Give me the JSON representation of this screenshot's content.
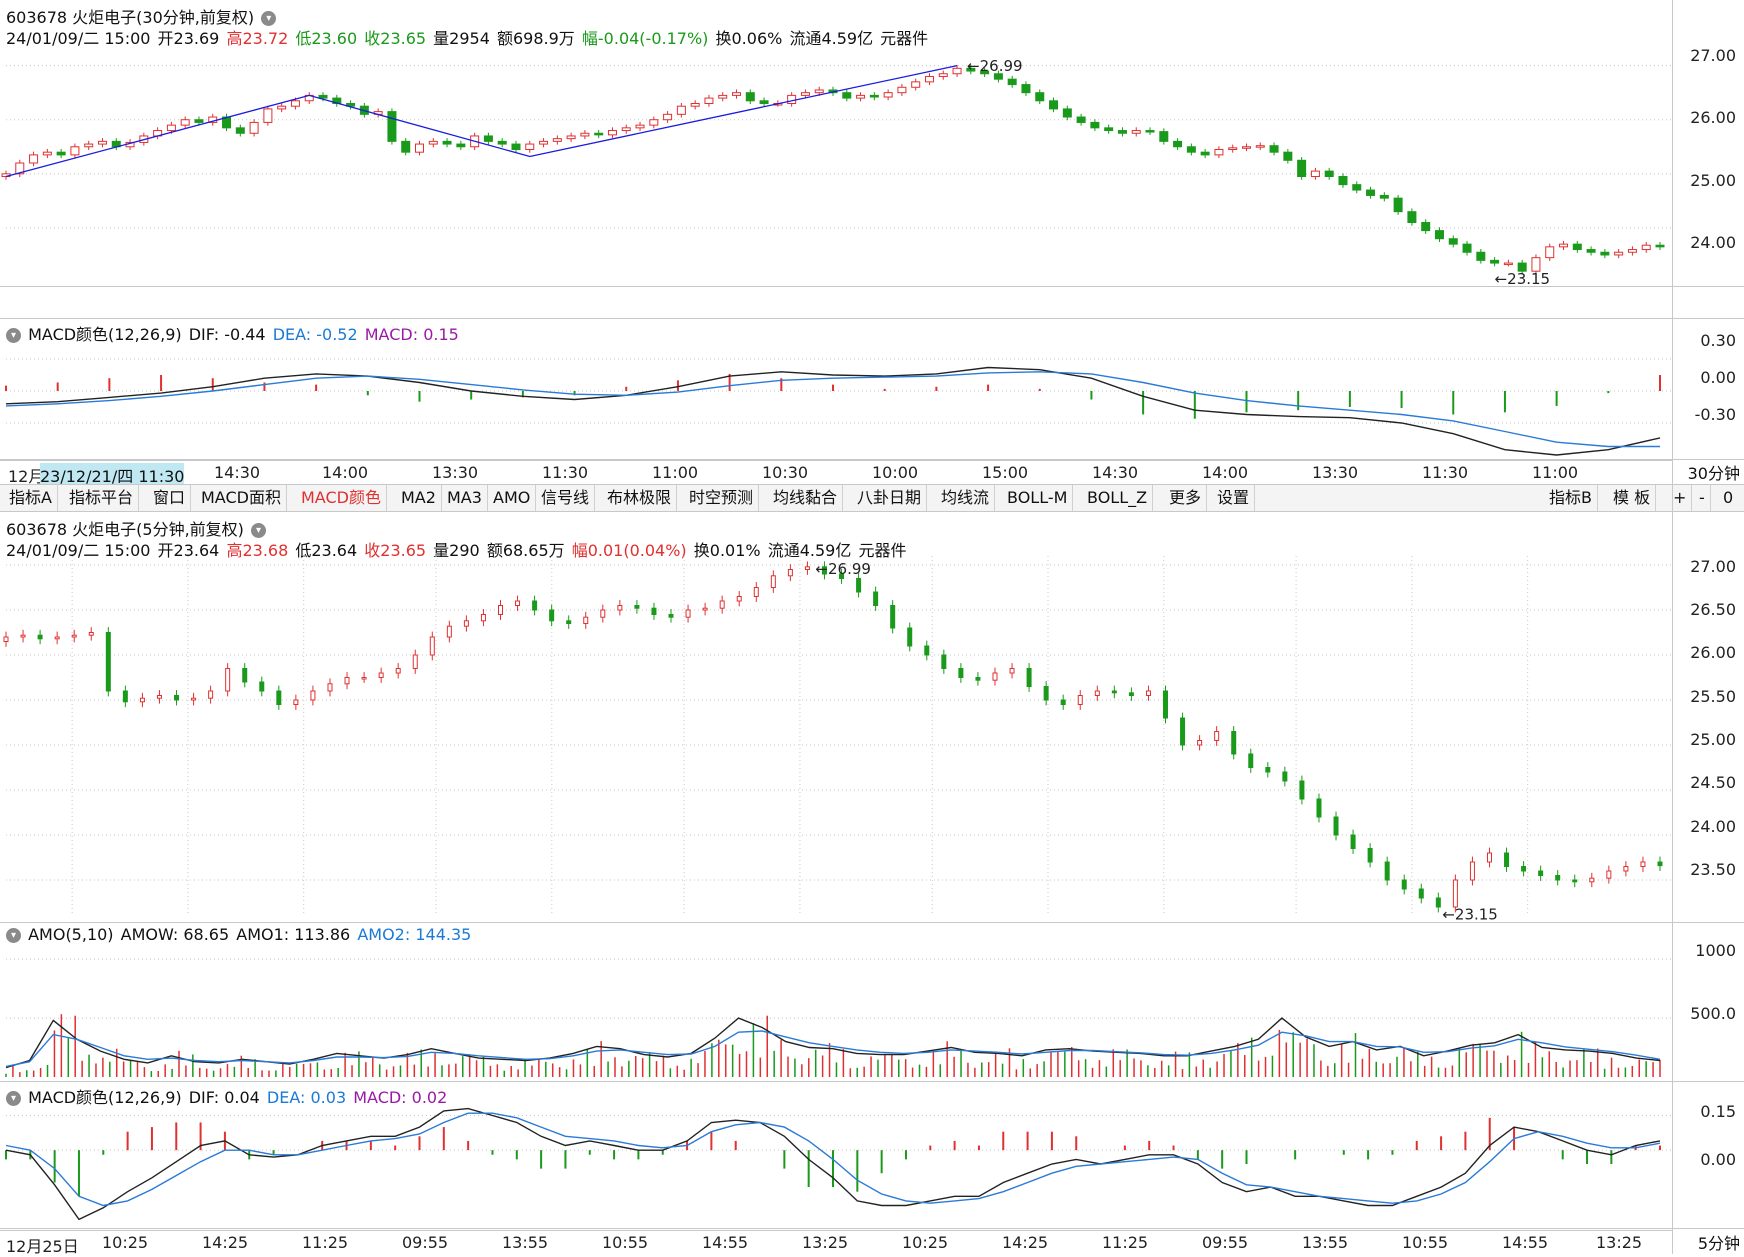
{
  "colors": {
    "up": "#e03030",
    "down": "#1a9a1a",
    "dif": "#222222",
    "dea": "#2a7ad8",
    "grid": "#c8c8c8",
    "trend": "#1a1ae0",
    "amo2": "#2a7ad8"
  },
  "top": {
    "title": "603678 火炬电子(30分钟,前复权)",
    "quote": {
      "date": "24/01/09/二 15:00",
      "open": "开23.69",
      "high": "高23.72",
      "low": "低23.60",
      "close": "收23.65",
      "vol": "量2954",
      "amount": "额698.9万",
      "change": "幅-0.04(-0.17%)",
      "turnover": "换0.06%",
      "float": "流通4.59亿",
      "sector": "元器件"
    },
    "yticks": [
      "27.00",
      "26.00",
      "25.00",
      "24.00"
    ],
    "yrange": [
      23.0,
      27.4
    ],
    "high_mark": "26.99",
    "low_mark": "23.15",
    "close_series": [
      25.0,
      25.2,
      25.35,
      25.4,
      25.35,
      25.5,
      25.55,
      25.6,
      25.5,
      25.58,
      25.7,
      25.8,
      25.9,
      26.0,
      25.95,
      26.05,
      25.85,
      25.75,
      25.95,
      26.2,
      26.25,
      26.35,
      26.45,
      26.4,
      26.3,
      26.25,
      26.1,
      26.15,
      25.6,
      25.4,
      25.55,
      25.6,
      25.55,
      25.5,
      25.7,
      25.6,
      25.55,
      25.45,
      25.55,
      25.6,
      25.65,
      25.7,
      25.75,
      25.72,
      25.8,
      25.85,
      25.9,
      26.0,
      26.1,
      26.25,
      26.3,
      26.4,
      26.45,
      26.5,
      26.35,
      26.3,
      26.3,
      26.45,
      26.5,
      26.55,
      26.5,
      26.4,
      26.45,
      26.42,
      26.5,
      26.6,
      26.7,
      26.8,
      26.85,
      26.95,
      26.9,
      26.85,
      26.75,
      26.65,
      26.5,
      26.35,
      26.2,
      26.05,
      25.95,
      25.85,
      25.8,
      25.75,
      25.8,
      25.78,
      25.6,
      25.5,
      25.4,
      25.35,
      25.45,
      25.48,
      25.5,
      25.52,
      25.4,
      25.25,
      24.95,
      25.05,
      24.95,
      24.8,
      24.7,
      24.6,
      24.55,
      24.3,
      24.1,
      23.95,
      23.8,
      23.7,
      23.55,
      23.4,
      23.35,
      23.35,
      23.2,
      23.45,
      23.65,
      23.7,
      23.6,
      23.55,
      23.5,
      23.55,
      23.6,
      23.68,
      23.65
    ]
  },
  "top_macd": {
    "title": "MACD颜色(12,26,9)",
    "dif": "DIF: -0.44",
    "dea": "DEA: -0.52",
    "macd": "MACD: 0.15",
    "yticks": [
      "0.30",
      "0.00",
      "-0.30"
    ],
    "yrange": [
      -0.6,
      0.45
    ],
    "dif_series": [
      -0.12,
      -0.1,
      -0.06,
      -0.02,
      0.04,
      0.12,
      0.16,
      0.14,
      0.08,
      0.0,
      -0.05,
      -0.08,
      -0.04,
      0.04,
      0.14,
      0.18,
      0.15,
      0.14,
      0.16,
      0.22,
      0.2,
      0.12,
      -0.05,
      -0.18,
      -0.22,
      -0.24,
      -0.25,
      -0.3,
      -0.4,
      -0.55,
      -0.6,
      -0.55,
      -0.44
    ],
    "dea_series": [
      -0.14,
      -0.12,
      -0.09,
      -0.05,
      0.0,
      0.06,
      0.12,
      0.14,
      0.11,
      0.06,
      0.01,
      -0.03,
      -0.04,
      -0.01,
      0.05,
      0.1,
      0.12,
      0.13,
      0.14,
      0.17,
      0.18,
      0.16,
      0.08,
      -0.02,
      -0.09,
      -0.14,
      -0.18,
      -0.22,
      -0.28,
      -0.38,
      -0.48,
      -0.52,
      -0.52
    ],
    "hist_series": [
      0.05,
      0.08,
      0.12,
      0.15,
      0.12,
      0.08,
      0.06,
      -0.04,
      -0.1,
      -0.08,
      -0.06,
      -0.04,
      0.04,
      0.1,
      0.16,
      0.12,
      0.06,
      0.02,
      0.04,
      0.06,
      0.02,
      -0.08,
      -0.22,
      -0.26,
      -0.2,
      -0.18,
      -0.15,
      -0.16,
      -0.22,
      -0.2,
      -0.14,
      -0.02,
      0.15
    ]
  },
  "top_time": {
    "labels": [
      "12月",
      "23/12/21/四 11:30",
      "14:30",
      "14:00",
      "13:30",
      "11:30",
      "11:00",
      "10:30",
      "10:00",
      "15:00",
      "14:30",
      "14:00",
      "13:30",
      "11:30",
      "11:00"
    ],
    "period": "30分钟"
  },
  "toolbar": {
    "items": [
      "指标A",
      "指标平台",
      "窗口",
      "MACD面积",
      "MACD颜色",
      "MA2",
      "MA3",
      "AMO",
      "信号线",
      "布林极限",
      "时空预测",
      "均线黏合",
      "八卦日期",
      "均线流",
      "BOLL-M",
      "BOLL_Z",
      "更多",
      "设置"
    ],
    "right_items": [
      "指标B",
      "模 板",
      "+",
      "-",
      "0"
    ]
  },
  "mid": {
    "title": "603678 火炬电子(5分钟,前复权)",
    "quote": {
      "date": "24/01/09/二 15:00",
      "open": "开23.64",
      "high": "高23.68",
      "low": "低23.64",
      "close": "收23.65",
      "vol": "量290",
      "amount": "额68.65万",
      "change": "幅0.01(0.04%)",
      "turnover": "换0.01%",
      "float": "流通4.59亿",
      "sector": "元器件"
    },
    "yticks": [
      "27.00",
      "26.50",
      "26.00",
      "25.50",
      "25.00",
      "24.50",
      "24.00",
      "23.50"
    ],
    "yrange": [
      23.1,
      27.1
    ],
    "high_mark": "26.99",
    "low_mark": "23.15",
    "close_series": [
      26.2,
      26.22,
      26.18,
      26.2,
      26.22,
      26.25,
      25.6,
      25.48,
      25.52,
      25.55,
      25.5,
      25.52,
      25.6,
      25.85,
      25.7,
      25.6,
      25.45,
      25.5,
      25.6,
      25.68,
      25.75,
      25.75,
      25.8,
      25.85,
      26.0,
      26.2,
      26.32,
      26.38,
      26.45,
      26.55,
      26.6,
      26.5,
      26.38,
      26.35,
      26.42,
      26.5,
      26.55,
      26.52,
      26.45,
      26.42,
      26.5,
      26.52,
      26.6,
      26.65,
      26.75,
      26.88,
      26.95,
      26.98,
      26.9,
      26.85,
      26.7,
      26.55,
      26.3,
      26.1,
      26.0,
      25.85,
      25.75,
      25.72,
      25.8,
      25.85,
      25.65,
      25.5,
      25.45,
      25.55,
      25.6,
      25.58,
      25.55,
      25.6,
      25.3,
      25.0,
      25.05,
      25.15,
      24.9,
      24.75,
      24.7,
      24.6,
      24.4,
      24.2,
      24.0,
      23.85,
      23.7,
      23.5,
      23.4,
      23.3,
      23.2,
      23.5,
      23.7,
      23.8,
      23.65,
      23.6,
      23.55,
      23.5,
      23.48,
      23.52,
      23.6,
      23.65,
      23.7,
      23.66
    ],
    "time_labels": [
      "12月25日",
      "10:25",
      "14:25",
      "11:25",
      "09:55",
      "13:55",
      "10:55",
      "14:55",
      "13:25",
      "10:25",
      "14:25",
      "11:25",
      "09:55",
      "13:55",
      "10:55",
      "14:55",
      "13:25"
    ],
    "period": "5分钟"
  },
  "amo": {
    "title": "AMO(5,10)",
    "amow": "AMOW: 68.65",
    "amo1": "AMO1: 113.86",
    "amo2": "AMO2: 144.35",
    "yticks": [
      "1000",
      "500.0"
    ],
    "yrange": [
      0,
      1120
    ],
    "amo1_series": [
      80,
      140,
      480,
      320,
      220,
      150,
      120,
      180,
      130,
      120,
      150,
      130,
      110,
      150,
      200,
      180,
      160,
      190,
      240,
      200,
      160,
      150,
      140,
      160,
      200,
      260,
      240,
      190,
      170,
      200,
      330,
      500,
      420,
      300,
      250,
      240,
      200,
      190,
      190,
      220,
      250,
      210,
      200,
      180,
      230,
      240,
      220,
      210,
      200,
      180,
      180,
      220,
      260,
      320,
      500,
      340,
      260,
      300,
      230,
      260,
      180,
      220,
      270,
      290,
      360,
      250,
      230,
      220,
      200,
      160,
      140
    ],
    "amo2_series": [
      90,
      130,
      360,
      320,
      250,
      180,
      150,
      160,
      140,
      130,
      140,
      130,
      120,
      140,
      170,
      170,
      165,
      175,
      210,
      200,
      180,
      165,
      150,
      155,
      180,
      220,
      230,
      210,
      190,
      195,
      260,
      380,
      390,
      340,
      290,
      260,
      230,
      210,
      200,
      210,
      230,
      220,
      210,
      195,
      210,
      225,
      225,
      215,
      205,
      190,
      185,
      200,
      230,
      270,
      380,
      350,
      300,
      300,
      260,
      255,
      210,
      215,
      245,
      265,
      320,
      290,
      255,
      235,
      215,
      185,
      150
    ]
  },
  "low_macd": {
    "title": "MACD颜色(12,26,9)",
    "dif": "DIF: 0.04",
    "dea": "DEA: 0.03",
    "macd": "MACD: 0.02",
    "yticks": [
      "0.15",
      "0.00"
    ],
    "yrange": [
      -0.32,
      0.2
    ],
    "dif_series": [
      0.0,
      -0.02,
      -0.15,
      -0.3,
      -0.25,
      -0.18,
      -0.12,
      -0.05,
      0.02,
      0.04,
      -0.02,
      -0.03,
      -0.02,
      0.02,
      0.04,
      0.06,
      0.06,
      0.1,
      0.17,
      0.18,
      0.15,
      0.12,
      0.06,
      0.02,
      0.04,
      0.02,
      0.0,
      0.0,
      0.04,
      0.12,
      0.13,
      0.12,
      0.06,
      -0.04,
      -0.12,
      -0.22,
      -0.24,
      -0.24,
      -0.22,
      -0.2,
      -0.2,
      -0.14,
      -0.1,
      -0.06,
      -0.04,
      -0.06,
      -0.04,
      -0.02,
      -0.02,
      -0.06,
      -0.14,
      -0.18,
      -0.16,
      -0.2,
      -0.2,
      -0.22,
      -0.24,
      -0.24,
      -0.2,
      -0.16,
      -0.1,
      0.02,
      0.1,
      0.08,
      0.04,
      0.0,
      -0.02,
      0.02,
      0.04
    ],
    "dea_series": [
      0.02,
      0.0,
      -0.08,
      -0.2,
      -0.24,
      -0.22,
      -0.17,
      -0.11,
      -0.05,
      0.0,
      0.0,
      -0.02,
      -0.02,
      0.0,
      0.02,
      0.04,
      0.05,
      0.07,
      0.12,
      0.16,
      0.16,
      0.14,
      0.1,
      0.06,
      0.05,
      0.04,
      0.02,
      0.01,
      0.02,
      0.08,
      0.11,
      0.12,
      0.1,
      0.04,
      -0.04,
      -0.13,
      -0.19,
      -0.22,
      -0.23,
      -0.22,
      -0.21,
      -0.18,
      -0.14,
      -0.1,
      -0.07,
      -0.06,
      -0.05,
      -0.04,
      -0.03,
      -0.04,
      -0.1,
      -0.15,
      -0.16,
      -0.18,
      -0.2,
      -0.21,
      -0.22,
      -0.23,
      -0.22,
      -0.19,
      -0.14,
      -0.05,
      0.05,
      0.08,
      0.06,
      0.03,
      0.01,
      0.01,
      0.03
    ],
    "hist_series": [
      -0.04,
      -0.04,
      -0.14,
      -0.2,
      -0.02,
      0.08,
      0.1,
      0.12,
      0.12,
      0.08,
      -0.04,
      -0.02,
      0.0,
      0.04,
      0.04,
      0.04,
      0.02,
      0.06,
      0.1,
      0.04,
      -0.02,
      -0.04,
      -0.08,
      -0.08,
      -0.02,
      -0.04,
      -0.04,
      -0.02,
      0.04,
      0.08,
      0.04,
      0.0,
      -0.08,
      -0.16,
      -0.16,
      -0.18,
      -0.1,
      -0.04,
      0.02,
      0.04,
      0.02,
      0.08,
      0.08,
      0.08,
      0.06,
      0.0,
      0.02,
      0.04,
      0.02,
      -0.04,
      -0.08,
      -0.06,
      0.0,
      -0.04,
      0.0,
      -0.02,
      -0.04,
      -0.02,
      0.04,
      0.06,
      0.08,
      0.14,
      0.1,
      0.0,
      -0.04,
      -0.06,
      -0.06,
      0.02,
      0.02
    ]
  }
}
